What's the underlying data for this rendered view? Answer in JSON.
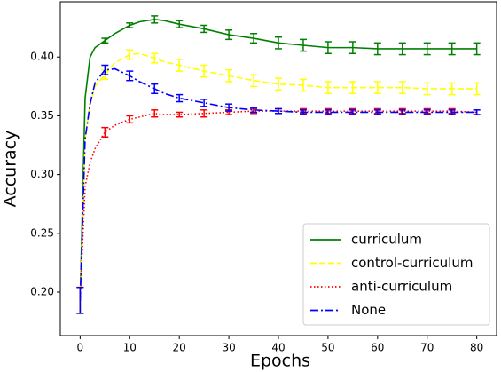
{
  "chart_data": {
    "type": "line",
    "xlabel": "Epochs",
    "ylabel": "Accuracy",
    "x": [
      0,
      1,
      2,
      3,
      5,
      7,
      10,
      12,
      15,
      17,
      20,
      25,
      30,
      35,
      40,
      45,
      50,
      55,
      60,
      65,
      70,
      75,
      80
    ],
    "xlim": [
      -4,
      84
    ],
    "xticks": [
      0,
      10,
      20,
      30,
      40,
      50,
      60,
      70,
      80
    ],
    "ylim": [
      0.163,
      0.447
    ],
    "yticks": [
      {
        "value": 0.2,
        "label": "0.20"
      },
      0.25,
      {
        "value": 0.3,
        "label": "0.30"
      },
      0.35,
      {
        "value": 0.4,
        "label": "0.40"
      }
    ],
    "legend": "lower right",
    "series": [
      {
        "name": "curriculum",
        "color": "#008000",
        "linestyle": "solid",
        "values": [
          0.193,
          0.365,
          0.4,
          0.408,
          0.414,
          0.42,
          0.427,
          0.43,
          0.432,
          0.431,
          0.428,
          0.424,
          0.419,
          0.416,
          0.412,
          0.41,
          0.408,
          0.408,
          0.407,
          0.407,
          0.407,
          0.407,
          0.407
        ],
        "errors": [
          0.011,
          null,
          null,
          null,
          0.002,
          null,
          0.002,
          null,
          0.003,
          null,
          0.003,
          0.003,
          0.004,
          0.004,
          0.005,
          0.005,
          0.005,
          0.005,
          0.005,
          0.005,
          0.005,
          0.005,
          0.005
        ]
      },
      {
        "name": "control-curriculum",
        "color": "#ffff00",
        "linestyle": "dashed",
        "values": [
          0.193,
          0.33,
          0.36,
          0.375,
          0.385,
          0.395,
          0.402,
          0.403,
          0.399,
          0.396,
          0.393,
          0.388,
          0.384,
          0.38,
          0.377,
          0.376,
          0.374,
          0.374,
          0.374,
          0.374,
          0.373,
          0.373,
          0.373
        ],
        "errors": [
          0.011,
          null,
          null,
          null,
          0.004,
          null,
          0.004,
          null,
          0.004,
          null,
          0.005,
          0.005,
          0.005,
          0.005,
          0.005,
          0.005,
          0.005,
          0.005,
          0.005,
          0.005,
          0.005,
          0.005,
          0.005
        ]
      },
      {
        "name": "anti-curriculum",
        "color": "#ff0000",
        "linestyle": "dotted",
        "values": [
          0.193,
          0.29,
          0.31,
          0.322,
          0.336,
          0.342,
          0.347,
          0.349,
          0.352,
          0.351,
          0.351,
          0.352,
          0.353,
          0.354,
          0.354,
          0.354,
          0.354,
          0.354,
          0.354,
          0.354,
          0.354,
          0.354,
          0.353
        ],
        "errors": [
          0.011,
          null,
          null,
          null,
          0.004,
          null,
          0.003,
          null,
          0.003,
          null,
          0.002,
          0.003,
          0.002,
          0.002,
          0.002,
          0.002,
          0.002,
          0.002,
          0.002,
          0.002,
          0.002,
          0.002,
          0.002
        ]
      },
      {
        "name": "None",
        "color": "#0000ff",
        "linestyle": "dashdot",
        "values": [
          0.193,
          0.33,
          0.36,
          0.378,
          0.389,
          0.39,
          0.384,
          0.379,
          0.373,
          0.369,
          0.365,
          0.361,
          0.357,
          0.355,
          0.354,
          0.353,
          0.353,
          0.353,
          0.353,
          0.353,
          0.353,
          0.353,
          0.353
        ],
        "errors": [
          0.011,
          null,
          null,
          null,
          0.004,
          null,
          0.004,
          null,
          0.004,
          null,
          0.003,
          0.003,
          0.003,
          0.002,
          0.002,
          0.002,
          0.002,
          0.002,
          0.002,
          0.002,
          0.002,
          0.002,
          0.002
        ]
      }
    ]
  }
}
